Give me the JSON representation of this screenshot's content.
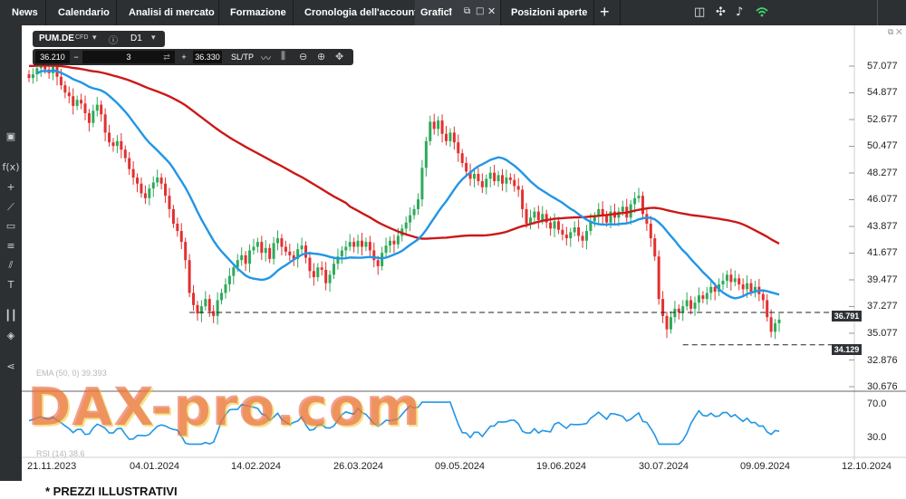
{
  "topbar": {
    "tabs": [
      {
        "label": "News"
      },
      {
        "label": "Calendario"
      },
      {
        "label": "Analisi di mercato"
      },
      {
        "label": "Formazione"
      },
      {
        "label": "Cronologia dell'account"
      },
      {
        "label": "Grafici"
      },
      {
        "label": "Posizioni aperte"
      }
    ],
    "add_tab": "+",
    "icons": [
      "layout-icon",
      "drone-icon",
      "bell-icon",
      "wifi-icon"
    ]
  },
  "instrument": {
    "symbol": "PUM.DE",
    "type": "CFD",
    "timeframe": "D1"
  },
  "trade_panel": {
    "sell_price": "36.210",
    "quantity": "3",
    "buy_price": "36.330",
    "sltp_label": "SL/TP"
  },
  "chart_data": {
    "type": "candlestick",
    "y_ticks": [
      "57.077",
      "54.877",
      "52.677",
      "50.477",
      "48.277",
      "46.077",
      "43.877",
      "41.677",
      "39.477",
      "37.277",
      "35.077",
      "32.876",
      "30.676"
    ],
    "x_ticks": [
      "21.11.2023",
      "04.01.2024",
      "14.02.2024",
      "26.03.2024",
      "09.05.2024",
      "19.06.2024",
      "30.07.2024",
      "09.09.2024",
      "12.10.2024"
    ],
    "oscillator_ticks": [
      "70.0",
      "30.0"
    ],
    "price_tags": [
      "36.791",
      "34.129"
    ],
    "horizontal_lines": [
      36.791,
      34.129
    ],
    "ma_fast_color": "#2196e6",
    "ma_slow_color": "#cc1818",
    "up_color": "#2eaa5a",
    "down_color": "#e23030",
    "series": [
      {
        "label": "EMA (50,0)",
        "value": "39.393"
      },
      {
        "label": "RSI (14)",
        "value": "38.6"
      }
    ],
    "closes": [
      56.1,
      56.4,
      56.9,
      57.2,
      56.8,
      56.5,
      57.1,
      56.2,
      55.5,
      54.9,
      54.6,
      53.8,
      54.3,
      54.0,
      53.2,
      52.4,
      53.4,
      53.9,
      53.1,
      51.6,
      50.8,
      50.5,
      50.9,
      50.2,
      49.5,
      48.6,
      47.9,
      47.4,
      46.6,
      46.2,
      47.0,
      47.5,
      47.9,
      47.4,
      46.4,
      45.3,
      44.1,
      43.5,
      42.6,
      41.1,
      38.4,
      37.4,
      36.7,
      37.3,
      37.9,
      36.9,
      36.5,
      37.8,
      38.4,
      39.1,
      39.8,
      40.5,
      41.1,
      41.5,
      40.8,
      41.9,
      42.2,
      42.6,
      41.7,
      42.1,
      41.2,
      42.5,
      42.9,
      42.2,
      41.8,
      41.5,
      41.2,
      42.0,
      42.3,
      41.3,
      40.2,
      39.7,
      40.5,
      40.3,
      39.2,
      39.9,
      40.8,
      41.4,
      41.9,
      42.2,
      42.6,
      42.2,
      42.7,
      42.2,
      42.6,
      41.9,
      41.1,
      40.6,
      41.7,
      42.3,
      42.7,
      42.4,
      43.1,
      43.7,
      44.2,
      44.8,
      45.3,
      46.1,
      48.7,
      50.9,
      52.5,
      51.9,
      52.6,
      51.5,
      50.9,
      51.6,
      50.8,
      49.9,
      49.1,
      48.4,
      47.8,
      48.2,
      47.6,
      47.1,
      47.8,
      48.3,
      47.6,
      48.1,
      47.4,
      47.9,
      47.7,
      47.2,
      46.9,
      45.3,
      44.1,
      44.6,
      45.1,
      44.4,
      44.9,
      44.2,
      43.7,
      44.3,
      43.6,
      43.2,
      42.9,
      43.4,
      43.8,
      43.1,
      42.7,
      43.5,
      44.3,
      44.7,
      45.3,
      44.8,
      44.2,
      45.1,
      44.6,
      45.1,
      45.5,
      44.6,
      45.7,
      46.2,
      46.4,
      44.9,
      44.1,
      42.9,
      41.4,
      37.9,
      36.5,
      35.4,
      36.4,
      37.1,
      36.8,
      37.3,
      37.8,
      37.1,
      37.6,
      38.2,
      37.9,
      38.4,
      38.9,
      38.5,
      39.1,
      39.4,
      39.9,
      39.3,
      39.6,
      39.1,
      38.7,
      39.2,
      38.5,
      38.9,
      38.3,
      37.8,
      36.4,
      35.2,
      35.9,
      36.2
    ]
  },
  "indicators": {
    "ema_label": "EMA (50, 0)",
    "ema_value": "39.393",
    "rsi_label": "RSI (14)",
    "rsi_value": "38.6"
  },
  "watermark": "DAX-pro.com",
  "footnote": "* PREZZI ILLUSTRATIVI"
}
